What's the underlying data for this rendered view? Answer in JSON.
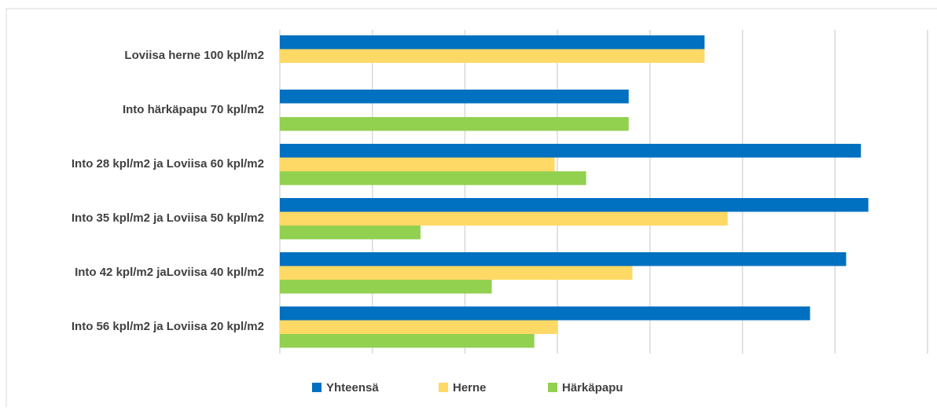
{
  "chart_data": {
    "type": "barh",
    "categories": [
      "Loviisa herne 100 kpl/m2",
      "Into härkäpapu 70 kpl/m2",
      "Into 28 kpl/m2 ja Loviisa 60 kpl/m2",
      "Into 35 kpl/m2 ja Loviisa 50 kpl/m2",
      "Into 42 kpl/m2 jaLoviisa 40 kpl/m2",
      "Into 56 kpl/m2 ja Loviisa 20 kpl/m2"
    ],
    "series": [
      {
        "name": "Yhteensä",
        "color": "#0070c0",
        "values": [
          4.59,
          3.77,
          6.28,
          6.36,
          6.12,
          5.73
        ]
      },
      {
        "name": "Herne",
        "color": "#ffd966",
        "values": [
          4.59,
          null,
          2.97,
          4.84,
          3.81,
          3.0
        ]
      },
      {
        "name": "Härkäpapu",
        "color": "#92d050",
        "values": [
          null,
          3.77,
          3.31,
          1.52,
          2.29,
          2.75
        ]
      }
    ],
    "xlim": [
      0,
      7
    ],
    "xticks": [
      0,
      1,
      2,
      3,
      4,
      5,
      6,
      7
    ],
    "grid": true,
    "legend": "bottom"
  }
}
